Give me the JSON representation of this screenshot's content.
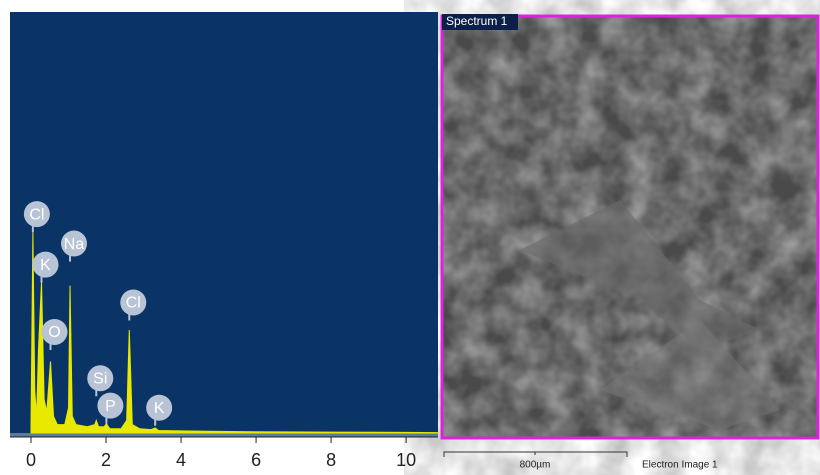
{
  "chart_data": {
    "type": "area",
    "color": "#e8e800",
    "background": "#0b3466",
    "x": [
      0,
      0.05,
      0.1,
      0.15,
      0.2,
      0.28,
      0.35,
      0.42,
      0.52,
      0.6,
      0.7,
      0.9,
      1.0,
      1.04,
      1.1,
      1.2,
      1.5,
      1.7,
      1.74,
      1.8,
      1.95,
      2.01,
      2.1,
      2.4,
      2.55,
      2.62,
      2.7,
      2.9,
      3.2,
      3.31,
      3.4,
      4,
      5,
      6,
      8,
      10,
      10.85
    ],
    "values": [
      2,
      48,
      10,
      4,
      20,
      36,
      8,
      5,
      17,
      4,
      2,
      2,
      6,
      35,
      4,
      2,
      1.5,
      2,
      3,
      1.5,
      1.5,
      2.2,
      1,
      1,
      3,
      24.5,
      2,
      1,
      0.8,
      1.2,
      0.6,
      0.5,
      0.4,
      0.3,
      0.2,
      0.15,
      0.1
    ],
    "xlim": [
      -0.56,
      10.85
    ],
    "ylim": [
      0,
      100
    ],
    "xticks": [
      0,
      2,
      4,
      6,
      8,
      10
    ],
    "peak_labels": [
      {
        "text": "Cl",
        "x": 0.05,
        "y": 52
      },
      {
        "text": "K",
        "x": 0.28,
        "y": 40
      },
      {
        "text": "Na",
        "x": 1.04,
        "y": 45
      },
      {
        "text": "O",
        "x": 0.52,
        "y": 24
      },
      {
        "text": "Si",
        "x": 1.74,
        "y": 13
      },
      {
        "text": "P",
        "x": 2.01,
        "y": 6.5
      },
      {
        "text": "Cl",
        "x": 2.62,
        "y": 31
      },
      {
        "text": "K",
        "x": 3.31,
        "y": 6
      }
    ]
  },
  "image_panel": {
    "label": "Spectrum 1",
    "scale_bar": "800µm",
    "caption": "Electron Image 1"
  }
}
